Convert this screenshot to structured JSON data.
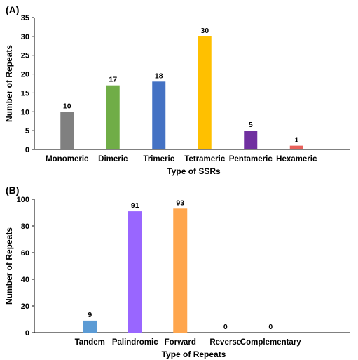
{
  "chart_data": [
    {
      "panel_label": "(A)",
      "type": "bar",
      "categories": [
        "Monomeric",
        "Dimeric",
        "Trimeric",
        "Tetrameric",
        "Pentameric",
        "Hexameric"
      ],
      "values": [
        10,
        17,
        18,
        30,
        5,
        1
      ],
      "colors": [
        "#808080",
        "#70ad47",
        "#4472c4",
        "#ffc000",
        "#7030a0",
        "#e8605a"
      ],
      "xlabel": "Type of SSRs",
      "ylabel": "Number of Repeats",
      "ylim": [
        0,
        35
      ],
      "yticks": [
        0,
        5,
        10,
        15,
        20,
        25,
        30,
        35
      ],
      "grid": false,
      "data_labels": true
    },
    {
      "panel_label": "(B)",
      "type": "bar",
      "categories": [
        "Tandem",
        "Palindromic",
        "Forward",
        "Reverse",
        "Complementary"
      ],
      "values": [
        9,
        91,
        93,
        0,
        0
      ],
      "colors": [
        "#5b9bd5",
        "#9966ff",
        "#ffa64d",
        "#a0a0a0",
        "#a0a0a0"
      ],
      "xlabel": "Type of Repeats",
      "ylabel": "Number of Repeats",
      "ylim": [
        0,
        100
      ],
      "yticks": [
        0,
        20,
        40,
        60,
        80,
        100
      ],
      "grid": false,
      "data_labels": true
    }
  ]
}
